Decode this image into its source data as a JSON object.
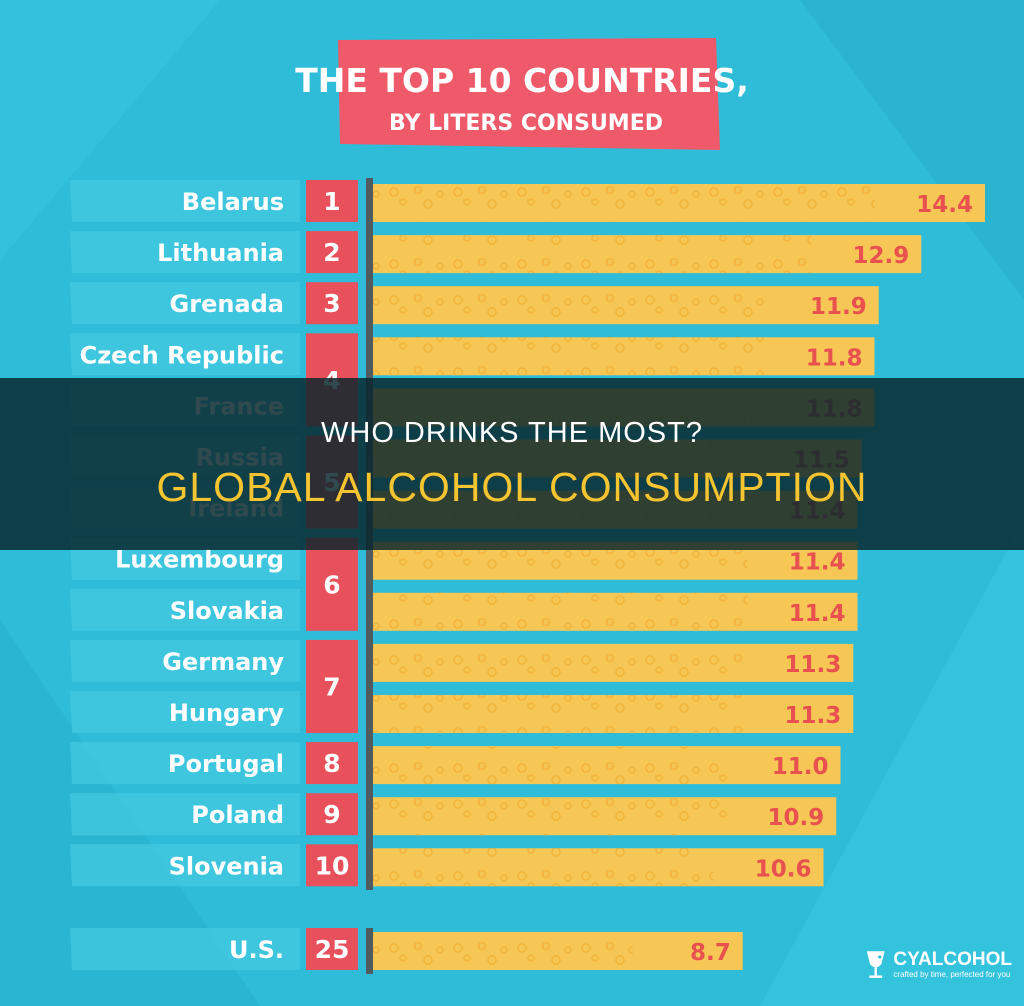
{
  "chart_data": {
    "type": "bar",
    "orientation": "horizontal",
    "title": "THE TOP 10 COUNTRIES,",
    "subtitle": "BY LITERS CONSUMED",
    "categories": [
      "Belarus",
      "Lithuania",
      "Grenada",
      "Czech Republic",
      "France",
      "Russia",
      "Ireland",
      "Luxembourg",
      "Slovakia",
      "Germany",
      "Hungary",
      "Portugal",
      "Poland",
      "Slovenia",
      "U.S."
    ],
    "values": [
      14.4,
      12.9,
      11.9,
      11.8,
      11.8,
      11.5,
      11.4,
      11.4,
      11.4,
      11.3,
      11.3,
      11.0,
      10.9,
      10.6,
      8.7
    ],
    "value_labels": [
      "14.4",
      "12.9",
      "11.9",
      "11.8",
      "11.8",
      "11.5",
      "11.4",
      "11.4",
      "11.4",
      "11.3",
      "11.3",
      "11.0",
      "10.9",
      "10.6",
      "8.7"
    ],
    "ranks": [
      {
        "label": "1",
        "first": 0,
        "last": 0
      },
      {
        "label": "2",
        "first": 1,
        "last": 1
      },
      {
        "label": "3",
        "first": 2,
        "last": 2
      },
      {
        "label": "4",
        "first": 3,
        "last": 4
      },
      {
        "label": "5",
        "first": 5,
        "last": 6
      },
      {
        "label": "6",
        "first": 7,
        "last": 8
      },
      {
        "label": "7",
        "first": 9,
        "last": 10
      },
      {
        "label": "8",
        "first": 11,
        "last": 11
      },
      {
        "label": "9",
        "first": 12,
        "last": 12
      },
      {
        "label": "10",
        "first": 13,
        "last": 13
      },
      {
        "label": "25",
        "first": 14,
        "last": 14
      }
    ],
    "legend": "none",
    "grid": false
  },
  "overlay": {
    "line1": "WHO DRINKS THE MOST?",
    "line2": "GLOBAL ALCOHOL CONSUMPTION"
  },
  "logo": {
    "name": "CYALCOHOL",
    "tagline": "crafted by time, perfected for you"
  },
  "colors": {
    "background": "#2fbcd8",
    "bar": "#f6c755",
    "rank_box": "#e8505b",
    "title_box": "#ef5a6a",
    "axis": "#4f5b5e",
    "overlay_accent": "#f4c431"
  }
}
